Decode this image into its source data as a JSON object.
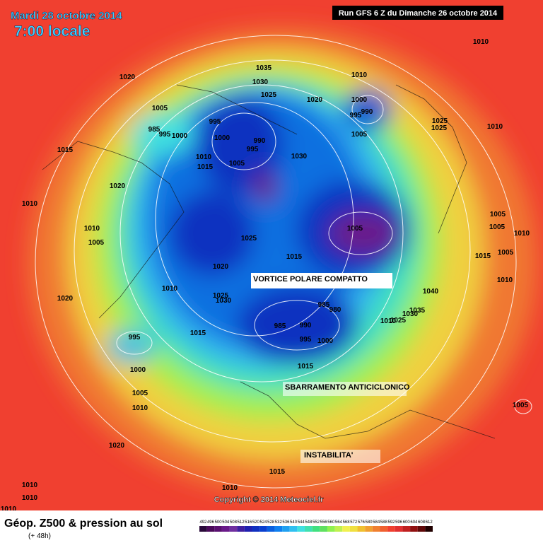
{
  "header": {
    "date": "Mardi 28 octobre 2014",
    "time": "7:00 locale",
    "run": "Run GFS 6 Z du Dimanche 26 octobre 2014"
  },
  "annotations": [
    "VORTICE POLARE COMPATTO",
    "SBARRAMENTO ANTICICLONICO",
    "INSTABILITA'"
  ],
  "copyright": "Copyright © 2014 Meteociel.fr",
  "legend": {
    "title": "Géop. Z500 & pression au sol",
    "subtitle": "(+ 48h)",
    "scale": [
      492,
      496,
      500,
      504,
      508,
      512,
      516,
      520,
      524,
      528,
      532,
      536,
      540,
      544,
      548,
      552,
      556,
      560,
      564,
      568,
      572,
      576,
      580,
      584,
      588,
      592,
      596,
      600,
      604,
      608,
      612
    ],
    "colors": [
      "#2a0a3a",
      "#4b0a5a",
      "#5a1070",
      "#6a1a8a",
      "#7030a0",
      "#4020a0",
      "#2020b0",
      "#1030c0",
      "#0a40d0",
      "#0a60e0",
      "#1080f0",
      "#20a0f0",
      "#30c0f0",
      "#40e0e0",
      "#40e0b0",
      "#40e080",
      "#60e060",
      "#90f050",
      "#c0f050",
      "#f0f050",
      "#f0e040",
      "#f0c030",
      "#f0a030",
      "#f08030",
      "#f06030",
      "#f04030",
      "#e03030",
      "#c02020",
      "#901010",
      "#600808",
      "#200000"
    ]
  },
  "isobar_labels": [
    "1010",
    "1020",
    "1035",
    "1030",
    "1025",
    "1010",
    "1020",
    "1000",
    "995",
    "990",
    "1005",
    "1005",
    "985",
    "995",
    "1000",
    "995",
    "1000",
    "990",
    "995",
    "1015",
    "1010",
    "1015",
    "1005",
    "1030",
    "1020",
    "1010",
    "1010",
    "1005",
    "1025",
    "1005",
    "1015",
    "1020",
    "1010",
    "1020",
    "1025",
    "1030",
    "985",
    "980",
    "985",
    "990",
    "995",
    "1000",
    "1015",
    "995",
    "1000",
    "1015",
    "1005",
    "1010",
    "1020",
    "1015",
    "1010",
    "1010",
    "1010",
    "1010",
    "1005",
    "1005",
    "1010",
    "1005",
    "1015",
    "1010",
    "1040",
    "1035",
    "1030",
    "1025",
    "1010",
    "1005",
    "1010",
    "1025",
    "1025"
  ]
}
